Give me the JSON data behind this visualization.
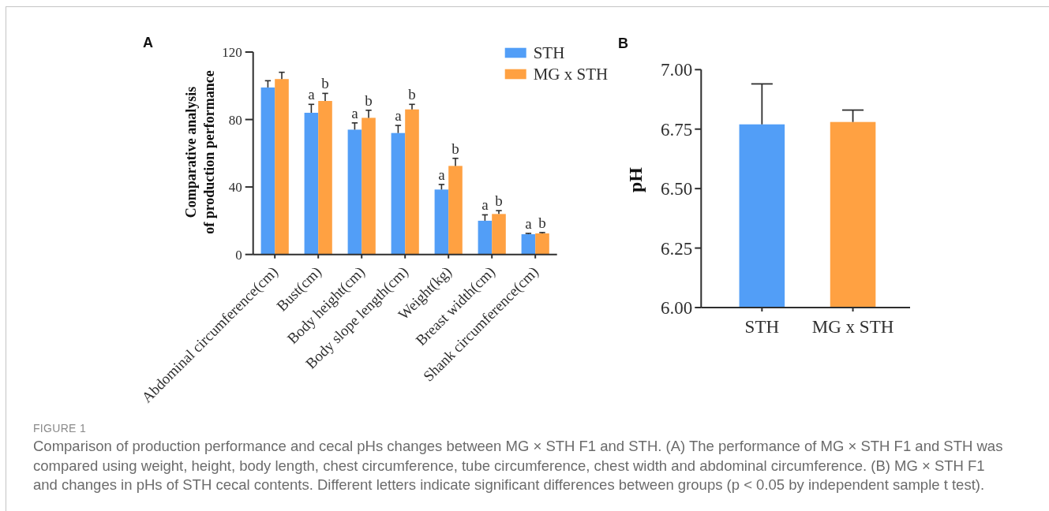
{
  "chart_data": [
    {
      "type": "bar",
      "title": "A",
      "ylabel": "Comparative analysis\nof production performance",
      "categories": [
        "Abdominal circumference(cm)",
        "Bust(cm)",
        "Body height(cm)",
        "Body slope length(cm)",
        "Weight(kg)",
        "Breast width(cm)",
        "Shank circumference(cm)"
      ],
      "series": [
        {
          "name": "STH",
          "color": "#529ef7",
          "values": [
            99,
            84,
            74,
            72,
            38.5,
            20,
            12
          ],
          "errors": [
            [
              99,
              103
            ],
            [
              84,
              89
            ],
            [
              74,
              78
            ],
            [
              72,
              76.5
            ],
            [
              38.5,
              41.5
            ],
            [
              20,
              23.5
            ],
            [
              12,
              12.5
            ]
          ],
          "value_labels": [
            null,
            "a",
            "a",
            "a",
            "a",
            "a",
            "a"
          ]
        },
        {
          "name": "MG x STH",
          "color": "#ffa142",
          "values": [
            104,
            91,
            81,
            86,
            52.5,
            24,
            12.5
          ],
          "errors": [
            [
              104,
              108
            ],
            [
              91,
              95.5
            ],
            [
              81,
              85.5
            ],
            [
              86,
              89
            ],
            [
              52.5,
              57
            ],
            [
              24,
              26
            ],
            [
              12.5,
              13
            ]
          ],
          "value_labels": [
            null,
            "b",
            "b",
            "b",
            "b",
            "b",
            "b"
          ]
        }
      ],
      "ylim": [
        0,
        120
      ],
      "yticks": [
        0,
        40,
        80,
        120
      ],
      "legend": "top right",
      "annotations": [
        "FIGURE 1",
        "Comparison of production performance and cecal pHs changes between MG × STH F1 and STH. (A) The performance of MG × STH F1 and STH was compared using weight, height, body length, chest circumference, tube circumference, chest width and abdominal circumference. (B) MG × STH F1 and changes in pHs of STH cecal contents. Different letters indicate significant differences between groups (p < 0.05 by independent sample t test)."
      ]
    },
    {
      "type": "bar",
      "title": "B",
      "ylabel": "pH",
      "categories": [
        "STH",
        "MG x STH"
      ],
      "values": [
        6.77,
        6.78
      ],
      "colors": [
        "#529ef7",
        "#ffa142"
      ],
      "errors": [
        [
          6.77,
          6.94
        ],
        [
          6.78,
          6.83
        ]
      ],
      "ylim": [
        6,
        7
      ],
      "yticks": [
        {
          "value": 6,
          "label": "6.00"
        },
        {
          "value": 6.25,
          "label": "6.25"
        },
        {
          "value": 6.5,
          "label": "6.50"
        },
        {
          "value": 6.75,
          "label": "6.75"
        },
        {
          "value": 7,
          "label": "7.00"
        }
      ]
    }
  ]
}
